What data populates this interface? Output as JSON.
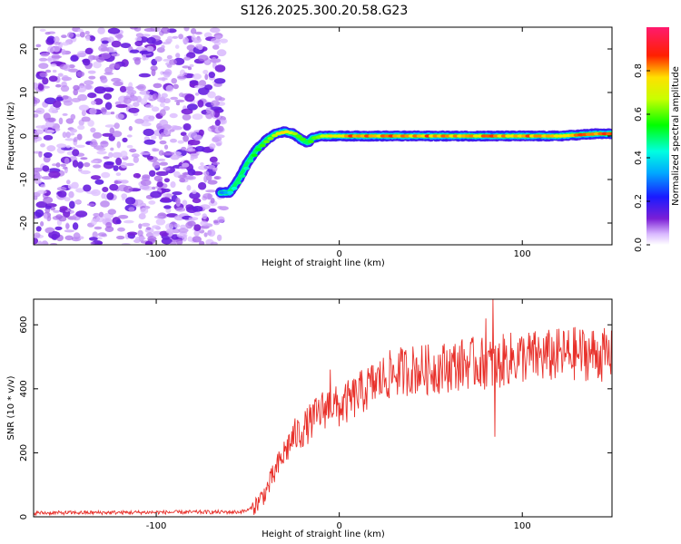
{
  "title": "S126.2025.300.20.58.G23",
  "chart_data": [
    {
      "type": "heatmap",
      "xlabel": "Height of straight line (km)",
      "ylabel": "Frequency (Hz)",
      "xlim": [
        -167,
        149
      ],
      "ylim": [
        -25,
        25
      ],
      "xticks": [
        -100,
        0,
        100
      ],
      "yticks": [
        -20,
        -10,
        0,
        10,
        20
      ],
      "colorbar": {
        "label": "Normalized spectral amplitude",
        "range": [
          0,
          1
        ],
        "ticks": [
          0.0,
          0.2,
          0.4,
          0.6,
          0.8
        ]
      },
      "ridge": {
        "x": [
          -65,
          -60,
          -55,
          -50,
          -45,
          -40,
          -35,
          -30,
          -25,
          -20,
          -17,
          -15,
          -10,
          -5,
          0,
          10,
          20,
          40,
          60,
          80,
          100,
          120,
          140,
          149
        ],
        "y": [
          -13,
          -13,
          -10,
          -6,
          -3,
          -1,
          0.5,
          1,
          0.5,
          -1,
          -1.5,
          -0.5,
          0,
          0,
          0,
          0,
          0,
          0,
          0,
          0,
          0,
          0,
          0.5,
          0.5
        ],
        "amplitude": [
          0.35,
          0.4,
          0.5,
          0.55,
          0.6,
          0.65,
          0.75,
          0.8,
          0.7,
          0.6,
          0.55,
          0.65,
          0.75,
          0.8,
          0.85,
          0.85,
          0.85,
          0.85,
          0.85,
          0.85,
          0.85,
          0.85,
          0.85,
          0.85
        ]
      },
      "noise_region": {
        "x_from": -167,
        "x_to": -63,
        "amplitude_range": [
          0.0,
          0.15
        ]
      }
    },
    {
      "type": "line",
      "xlabel": "Height of straight line (km)",
      "ylabel": "SNR (10 * v/v)",
      "xlim": [
        -167,
        149
      ],
      "ylim": [
        0,
        680
      ],
      "xticks": [
        -100,
        0,
        100
      ],
      "yticks": [
        0,
        200,
        400,
        600
      ],
      "series": [
        {
          "name": "SNR",
          "color": "#e8302a",
          "x": [
            -167,
            -100,
            -55,
            -50,
            -45,
            -40,
            -35,
            -30,
            -25,
            -20,
            -15,
            -10,
            -5,
            0,
            10,
            20,
            30,
            40,
            50,
            60,
            70,
            80,
            86,
            90,
            100,
            110,
            120,
            130,
            140,
            149
          ],
          "y": [
            12,
            14,
            15,
            20,
            40,
            80,
            140,
            200,
            250,
            270,
            300,
            330,
            350,
            340,
            380,
            420,
            450,
            460,
            460,
            470,
            480,
            480,
            470,
            490,
            500,
            500,
            505,
            510,
            510,
            500
          ]
        }
      ],
      "spikes": [
        {
          "x": -5,
          "y": 460
        },
        {
          "x": 80,
          "y": 620
        },
        {
          "x": 84,
          "y": 680
        },
        {
          "x": 85,
          "y": 250
        }
      ]
    }
  ]
}
